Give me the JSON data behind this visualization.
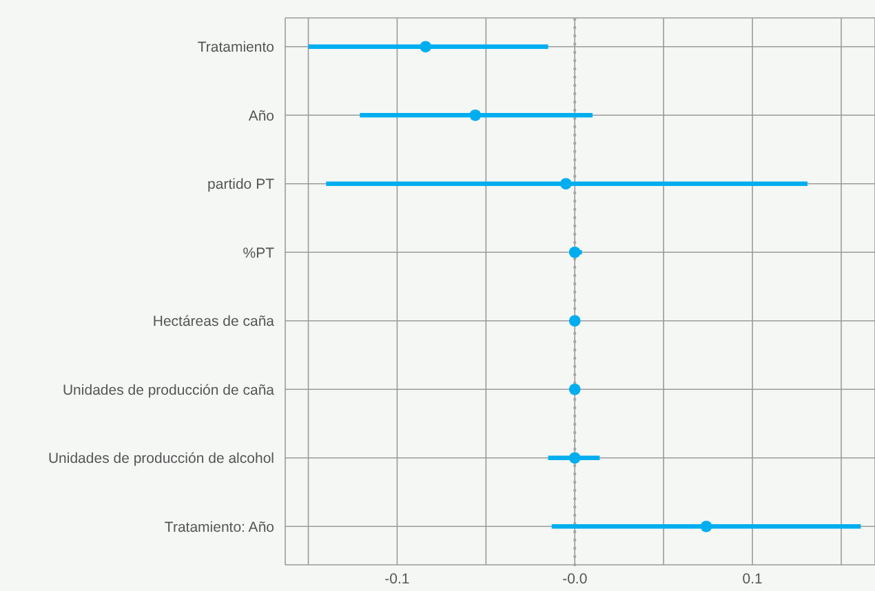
{
  "chart_data": {
    "type": "scatter",
    "orientation": "horizontal",
    "categories": [
      "Tratamiento",
      "Año",
      "partido PT",
      "%PT",
      "Hectáreas de caña",
      "Unidades de producción de caña",
      "Unidades de producción de alcohol",
      "Tratamiento: Año"
    ],
    "values": [
      -0.084,
      -0.056,
      -0.005,
      0,
      0,
      0,
      0,
      0.074
    ],
    "errors": [
      [
        -0.15,
        -0.015
      ],
      [
        -0.121,
        0.01
      ],
      [
        -0.14,
        0.131
      ],
      [
        -0.003,
        0.004
      ],
      null,
      null,
      [
        -0.015,
        0.014
      ],
      [
        -0.013,
        0.161
      ]
    ],
    "color": "#00aeef",
    "marker": "circle",
    "xlim": [
      -0.163,
      0.169
    ],
    "xticks": [
      {
        "value": -0.15,
        "label": null
      },
      -0.1,
      {
        "value": -0.05,
        "label": null
      },
      {
        "value": 0,
        "label": "-0.0"
      },
      {
        "value": 0.05,
        "label": null
      },
      0.1,
      {
        "value": 0.15,
        "label": null
      }
    ],
    "grid": true,
    "ref_lines": [
      {
        "axis": "x",
        "value": 0,
        "color": "#a6a6a6",
        "line_style": "dotted"
      }
    ]
  }
}
